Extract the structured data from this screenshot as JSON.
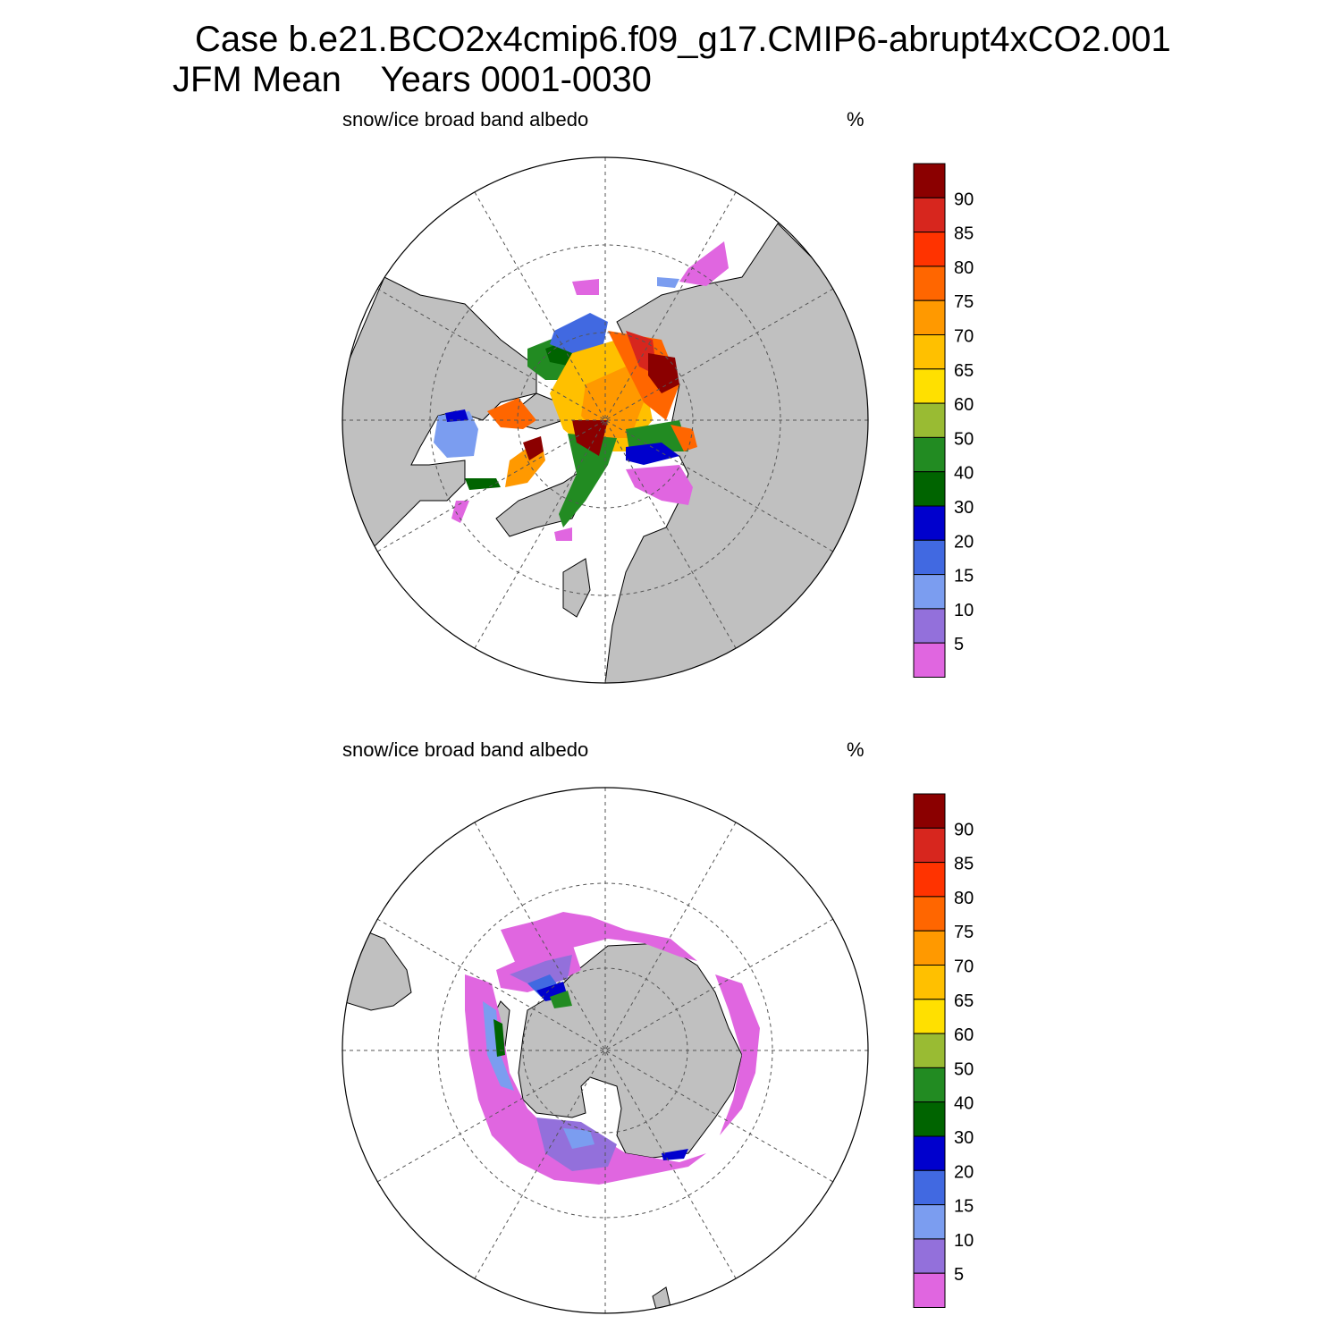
{
  "title": {
    "line1": "Case b.e21.BCO2x4cmip6.f09_g17.CMIP6-abrupt4xCO2.001",
    "line2": "JFM Mean    Years 0001-0030"
  },
  "panels": [
    {
      "label": "snow/ice broad band albedo",
      "units": "%"
    },
    {
      "label": "snow/ice broad band albedo",
      "units": "%"
    }
  ],
  "colorbar": {
    "levels": [
      "90",
      "85",
      "80",
      "75",
      "70",
      "65",
      "60",
      "50",
      "40",
      "30",
      "20",
      "15",
      "10",
      "5"
    ],
    "colors": [
      "#8b0000",
      "#d7261e",
      "#ff3300",
      "#ff6600",
      "#ff9900",
      "#ffc000",
      "#ffe000",
      "#99bb33",
      "#228b22",
      "#006400",
      "#0000cd",
      "#4169e1",
      "#7b9df0",
      "#9370db",
      "#e066e0"
    ]
  },
  "colors": {
    "land": "#c0c0c0",
    "ocean": "#ffffff",
    "grid": "#555555"
  }
}
